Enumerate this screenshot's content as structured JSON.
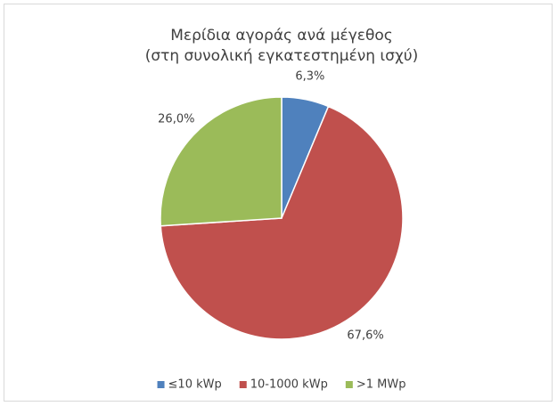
{
  "chart_data": {
    "type": "pie",
    "title": "Μερίδια αγοράς ανά μέγεθος",
    "subtitle": "(στη συνολική εγκατεστημένη ισχύ)",
    "categories": [
      "≤10 kWp",
      "10-1000 kWp",
      ">1 MWp"
    ],
    "values": [
      6.3,
      67.6,
      26.0
    ],
    "value_labels": [
      "6,3%",
      "67,6%",
      "26,0%"
    ],
    "colors": [
      "#4f81bd",
      "#c0504d",
      "#9bbb59"
    ],
    "legend": "bottom"
  }
}
